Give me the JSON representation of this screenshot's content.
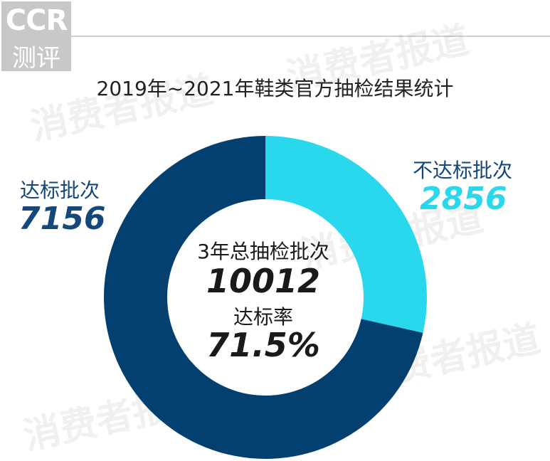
{
  "logo": {
    "top": "CCR",
    "bottom": "测评"
  },
  "watermarks": [
    "消费者报道",
    "消费者报道",
    "消费者报道",
    "消费者报道",
    "消费者报道"
  ],
  "chart_data": {
    "type": "pie",
    "title": "2019年~2021年鞋类官方抽检结果统计",
    "donut": true,
    "slices": [
      {
        "label": "不达标批次",
        "value": 2856,
        "value_text": "2856",
        "color": "#2ad8ee"
      },
      {
        "label": "达标批次",
        "value": 7156,
        "value_text": "7156",
        "color": "#03406f"
      }
    ],
    "center": {
      "total_label": "3年总抽检批次",
      "total_value": "10012",
      "rate_label": "达标率",
      "rate_value": "71.5%"
    }
  },
  "colors": {
    "text_dark": "#1a1a1a",
    "label_blue": "#14477a",
    "label_cyan": "#2ad8ee"
  }
}
